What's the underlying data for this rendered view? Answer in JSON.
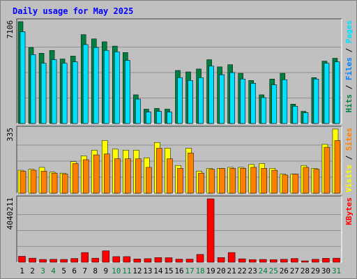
{
  "chart_data": {
    "type": "bar",
    "title": "Daily usage for May 2025",
    "categories": [
      "1",
      "2",
      "3",
      "4",
      "5",
      "6",
      "7",
      "8",
      "9",
      "10",
      "11",
      "12",
      "13",
      "14",
      "15",
      "16",
      "17",
      "18",
      "19",
      "20",
      "21",
      "22",
      "23",
      "24",
      "25",
      "26",
      "27",
      "28",
      "29",
      "30",
      "31"
    ],
    "weekend_days": [
      "3",
      "4",
      "10",
      "11",
      "17",
      "18",
      "24",
      "25",
      "31"
    ],
    "panels": [
      {
        "id": "top",
        "ymax_label": "7106",
        "ymax": 7106,
        "right_labels": [
          {
            "text": "Hits",
            "color": "#008040"
          },
          {
            "text": " / ",
            "color": "#000000"
          },
          {
            "text": "Files",
            "color": "#0080ff"
          },
          {
            "text": " / ",
            "color": "#000000"
          },
          {
            "text": "Pages",
            "color": "#00e0ff"
          }
        ],
        "series": [
          {
            "name": "Hits",
            "color": "#008040",
            "values": [
              7106,
              5300,
              4900,
              5100,
              4500,
              4700,
              6200,
              5900,
              5700,
              5400,
              4950,
              2000,
              1000,
              1050,
              1000,
              3700,
              3600,
              3800,
              4450,
              3950,
              4100,
              3500,
              3000,
              2000,
              3100,
              3500,
              1350,
              850,
              3200,
              4350,
              4550
            ]
          },
          {
            "name": "Files",
            "color": "#0080ff",
            "values": [
              6400,
              4800,
              4200,
              4450,
              4200,
              4300,
              5500,
              5300,
              5100,
              5000,
              4400,
              1700,
              800,
              850,
              800,
              3200,
              3000,
              3200,
              4000,
              3400,
              3550,
              3100,
              2800,
              1800,
              2700,
              3050,
              1200,
              750,
              3100,
              4200,
              4300
            ]
          },
          {
            "name": "Pages",
            "color": "#00e0ff",
            "values": [
              6400,
              4800,
              4200,
              4450,
              4200,
              4300,
              5500,
              5300,
              5100,
              5000,
              4400,
              1700,
              800,
              850,
              800,
              3200,
              3000,
              3200,
              4000,
              3400,
              3550,
              3100,
              2800,
              1800,
              2700,
              3050,
              1200,
              750,
              3100,
              4200,
              4300
            ]
          }
        ]
      },
      {
        "id": "middle",
        "ymax_label": "335",
        "ymax": 335,
        "right_labels": [
          {
            "text": "Visits",
            "color": "#ffff00"
          },
          {
            "text": " / ",
            "color": "#000000"
          },
          {
            "text": "Sites",
            "color": "#ff8000"
          }
        ],
        "series": [
          {
            "name": "Visits",
            "color": "#ffff00",
            "values": [
              120,
              125,
              135,
              110,
              105,
              165,
              195,
              225,
              275,
              230,
              225,
              225,
              185,
              265,
              235,
              145,
              235,
              115,
              130,
              130,
              135,
              135,
              150,
              155,
              130,
              100,
              100,
              145,
              130,
              255,
              335
            ]
          },
          {
            "name": "Sites",
            "color": "#ff8000",
            "values": [
              115,
              120,
              115,
              105,
              100,
              155,
              175,
              200,
              205,
              180,
              180,
              180,
              135,
              235,
              180,
              130,
              210,
              105,
              125,
              130,
              130,
              130,
              135,
              130,
              120,
              95,
              100,
              135,
              125,
              240,
              275
            ]
          }
        ]
      },
      {
        "id": "bottom",
        "ymax_label": "4040211",
        "ymax": 4040211,
        "right_labels": [
          {
            "text": "KBytes",
            "color": "#ff0000"
          }
        ],
        "series": [
          {
            "name": "KBytes",
            "color": "#ff0000",
            "values": [
              380000,
              260000,
              180000,
              190000,
              180000,
              240000,
              620000,
              260000,
              730000,
              360000,
              360000,
              210000,
              230000,
              300000,
              290000,
              200000,
              200000,
              500000,
              4040211,
              300000,
              620000,
              220000,
              170000,
              180000,
              170000,
              190000,
              240000,
              80000,
              190000,
              250000,
              260000
            ]
          }
        ]
      }
    ],
    "colors": {
      "background": "#c0c0c0",
      "plot_background": "#c0c0c0",
      "title": "#0000ff",
      "grid": "#808080",
      "weekday_label": "#000000",
      "weekend_label": "#008040"
    }
  }
}
